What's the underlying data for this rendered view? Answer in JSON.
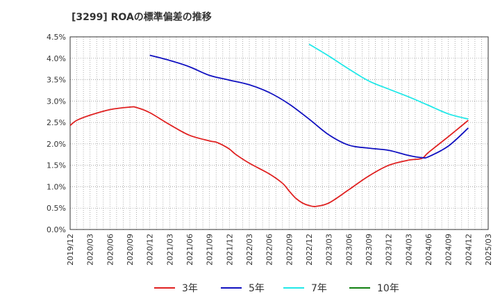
{
  "chart_data": {
    "type": "line",
    "title": "[3299]  ROAの標準偏差の推移",
    "xlabel": "",
    "ylabel": "",
    "x_tick_labels": [
      "2019/12",
      "2020/03",
      "2020/06",
      "2020/09",
      "2020/12",
      "2021/03",
      "2021/06",
      "2021/09",
      "2021/12",
      "2022/03",
      "2022/06",
      "2022/09",
      "2022/12",
      "2023/03",
      "2023/06",
      "2023/09",
      "2023/12",
      "2024/03",
      "2024/06",
      "2024/09",
      "2024/12",
      "2025/03"
    ],
    "y_tick_labels": [
      "0.0%",
      "0.5%",
      "1.0%",
      "1.5%",
      "2.0%",
      "2.5%",
      "3.0%",
      "3.5%",
      "4.0%",
      "4.5%"
    ],
    "ylim": [
      0,
      4.5
    ],
    "grid": true,
    "legend_position": "bottom",
    "series": [
      {
        "name": "3年",
        "color": "#e02020",
        "x": [
          "2019/12",
          "2020/01",
          "2020/03",
          "2020/06",
          "2020/09",
          "2020/10",
          "2020/12",
          "2021/03",
          "2021/06",
          "2021/09",
          "2021/10",
          "2021/11",
          "2021/12",
          "2022/01",
          "2022/03",
          "2022/06",
          "2022/08",
          "2022/09",
          "2022/10",
          "2022/11",
          "2022/12",
          "2023/01",
          "2023/03",
          "2023/06",
          "2023/09",
          "2023/12",
          "2024/03",
          "2024/05",
          "2024/06",
          "2024/09",
          "2024/12"
        ],
        "values": [
          2.43,
          2.55,
          2.67,
          2.8,
          2.86,
          2.85,
          2.73,
          2.45,
          2.2,
          2.07,
          2.04,
          1.97,
          1.88,
          1.75,
          1.55,
          1.3,
          1.08,
          0.9,
          0.73,
          0.62,
          0.56,
          0.54,
          0.62,
          0.93,
          1.25,
          1.5,
          1.62,
          1.66,
          1.8,
          2.17,
          2.55
        ]
      },
      {
        "name": "5年",
        "color": "#1010c0",
        "x": [
          "2020/12",
          "2021/03",
          "2021/06",
          "2021/09",
          "2021/12",
          "2022/03",
          "2022/06",
          "2022/09",
          "2022/12",
          "2023/03",
          "2023/06",
          "2023/09",
          "2023/12",
          "2024/03",
          "2024/05",
          "2024/06",
          "2024/09",
          "2024/12"
        ],
        "values": [
          4.07,
          3.95,
          3.8,
          3.6,
          3.49,
          3.38,
          3.2,
          2.93,
          2.58,
          2.21,
          1.97,
          1.9,
          1.85,
          1.73,
          1.68,
          1.7,
          1.95,
          2.37
        ]
      },
      {
        "name": "7年",
        "color": "#20e8e8",
        "x": [
          "2022/12",
          "2023/03",
          "2023/06",
          "2023/09",
          "2023/12",
          "2024/03",
          "2024/06",
          "2024/09",
          "2024/12"
        ],
        "values": [
          4.33,
          4.05,
          3.75,
          3.47,
          3.28,
          3.1,
          2.9,
          2.7,
          2.58
        ]
      },
      {
        "name": "10年",
        "color": "#108010",
        "x": [],
        "values": []
      }
    ]
  }
}
